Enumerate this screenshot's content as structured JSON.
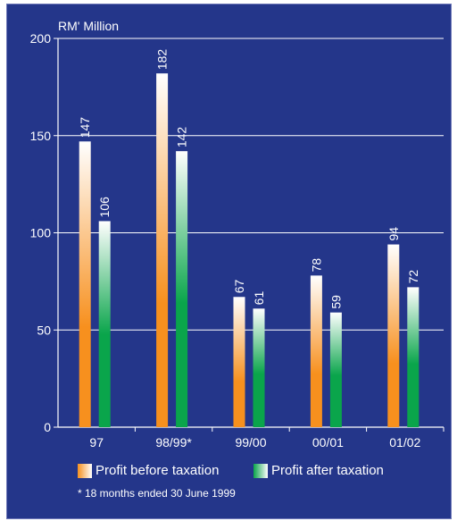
{
  "chart_data": {
    "type": "bar",
    "title": "",
    "ylabel": "RM' Million",
    "xlabel": "",
    "categories": [
      "97",
      "98/99*",
      "99/00",
      "00/01",
      "01/02"
    ],
    "series": [
      {
        "name": "Profit before taxation",
        "values": [
          147,
          182,
          67,
          78,
          94
        ],
        "color": "#f7901e"
      },
      {
        "name": "Profit after taxation",
        "values": [
          106,
          142,
          61,
          59,
          72
        ],
        "color": "#0aa54b"
      }
    ],
    "ylim": [
      0,
      200
    ],
    "yticks": [
      "0",
      "50",
      "100",
      "150",
      "200"
    ],
    "grid": true,
    "legend_position": "bottom",
    "background": "#24368a"
  },
  "footnote": "* 18 months ended 30 June 1999"
}
